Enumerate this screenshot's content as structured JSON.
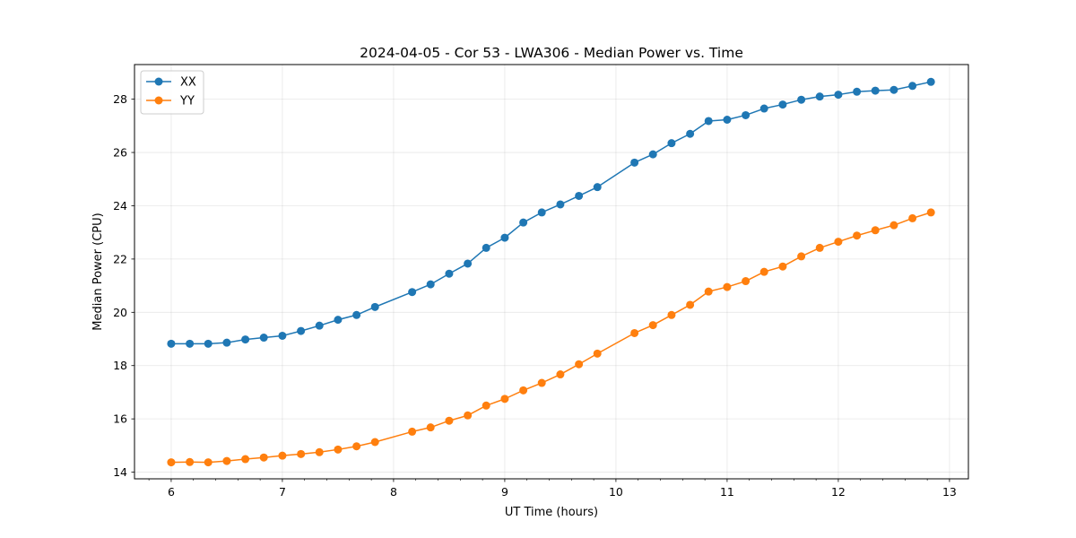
{
  "chart_data": {
    "type": "line",
    "title": "2024-04-05 - Cor 53 - LWA306 - Median Power vs. Time",
    "xlabel": "UT Time (hours)",
    "ylabel": "Median Power (CPU)",
    "xlim": [
      5.67,
      13.17
    ],
    "ylim": [
      13.75,
      29.3
    ],
    "xticks": [
      6,
      7,
      8,
      9,
      10,
      11,
      12,
      13
    ],
    "yticks": [
      14,
      16,
      18,
      20,
      22,
      24,
      26,
      28
    ],
    "x_minor_step": 0.2,
    "grid": true,
    "legend_position": "upper-left",
    "series": [
      {
        "name": "XX",
        "color": "#1f77b4",
        "x": [
          6.0,
          6.167,
          6.333,
          6.5,
          6.667,
          6.833,
          7.0,
          7.167,
          7.333,
          7.5,
          7.667,
          7.833,
          8.167,
          8.333,
          8.5,
          8.667,
          8.833,
          9.0,
          9.167,
          9.333,
          9.5,
          9.667,
          9.833,
          10.167,
          10.333,
          10.5,
          10.667,
          10.833,
          11.0,
          11.167,
          11.333,
          11.5,
          11.667,
          11.833,
          12.0,
          12.167,
          12.333,
          12.5,
          12.667,
          12.833
        ],
        "values": [
          18.82,
          18.82,
          18.82,
          18.86,
          18.98,
          19.05,
          19.12,
          19.3,
          19.5,
          19.72,
          19.9,
          20.2,
          20.76,
          21.05,
          21.45,
          21.83,
          22.42,
          22.8,
          23.37,
          23.75,
          24.05,
          24.37,
          24.7,
          25.62,
          25.93,
          26.35,
          26.7,
          27.18,
          27.23,
          27.4,
          27.65,
          27.8,
          27.98,
          28.1,
          28.17,
          28.28,
          28.32,
          28.35,
          28.5,
          28.65
        ]
      },
      {
        "name": "YY",
        "color": "#ff7f0e",
        "x": [
          6.0,
          6.167,
          6.333,
          6.5,
          6.667,
          6.833,
          7.0,
          7.167,
          7.333,
          7.5,
          7.667,
          7.833,
          8.167,
          8.333,
          8.5,
          8.667,
          8.833,
          9.0,
          9.167,
          9.333,
          9.5,
          9.667,
          9.833,
          10.167,
          10.333,
          10.5,
          10.667,
          10.833,
          11.0,
          11.167,
          11.333,
          11.5,
          11.667,
          11.833,
          12.0,
          12.167,
          12.333,
          12.5,
          12.667,
          12.833
        ],
        "values": [
          14.37,
          14.38,
          14.37,
          14.42,
          14.49,
          14.55,
          14.62,
          14.68,
          14.75,
          14.85,
          14.97,
          15.13,
          15.52,
          15.68,
          15.93,
          16.13,
          16.5,
          16.75,
          17.07,
          17.35,
          17.67,
          18.05,
          18.45,
          19.22,
          19.52,
          19.9,
          20.28,
          20.78,
          20.95,
          21.17,
          21.52,
          21.72,
          22.1,
          22.42,
          22.65,
          22.88,
          23.08,
          23.27,
          23.53,
          23.75
        ]
      }
    ]
  }
}
